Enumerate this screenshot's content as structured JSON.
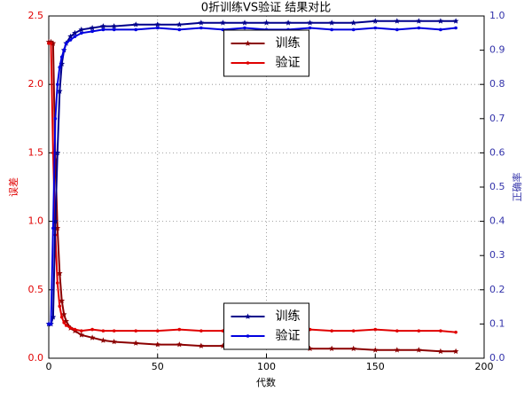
{
  "chart_data": {
    "type": "line",
    "title": "0折训练VS验证 结果对比",
    "x_label": "代数",
    "y_label": "误差",
    "y2_label": "正确率",
    "x": [
      0,
      1,
      2,
      3,
      4,
      5,
      6,
      7,
      8,
      10,
      12,
      15,
      20,
      25,
      30,
      40,
      50,
      60,
      70,
      80,
      90,
      100,
      110,
      120,
      130,
      140,
      150,
      160,
      170,
      180,
      187
    ],
    "xlim": [
      0,
      200
    ],
    "xticks": [
      0,
      50,
      100,
      150,
      200
    ],
    "ylim": [
      0,
      2.5
    ],
    "yticks": [
      {
        "value": 0,
        "label": "0.0"
      },
      {
        "value": 0.5,
        "label": "0.5"
      },
      {
        "value": 1,
        "label": "1.0"
      },
      {
        "value": 1.5,
        "label": "1.5"
      },
      {
        "value": 2,
        "label": "2.0"
      },
      {
        "value": 2.5,
        "label": "2.5"
      }
    ],
    "y2lim": [
      0,
      1
    ],
    "y2ticks": [
      {
        "value": 0,
        "label": "0.0"
      },
      0.1,
      0.2,
      0.3,
      0.4,
      0.5,
      0.6,
      0.7,
      0.8,
      0.9,
      {
        "value": 1,
        "label": "1.0"
      }
    ],
    "grid": true,
    "legend_loc": "upper center",
    "legend2_loc": "lower center",
    "series": [
      {
        "name": "训练",
        "color": "#8b0000",
        "marker": "star",
        "axis": "y",
        "values": [
          2.31,
          2.31,
          2.3,
          1.45,
          0.95,
          0.62,
          0.42,
          0.32,
          0.27,
          0.22,
          0.2,
          0.17,
          0.15,
          0.13,
          0.12,
          0.11,
          0.1,
          0.1,
          0.09,
          0.09,
          0.08,
          0.08,
          0.08,
          0.07,
          0.07,
          0.07,
          0.06,
          0.06,
          0.06,
          0.05,
          0.05
        ]
      },
      {
        "name": "验证",
        "color": "#e00000",
        "marker": "dot",
        "axis": "y",
        "values": [
          2.3,
          2.3,
          1.5,
          0.9,
          0.55,
          0.38,
          0.3,
          0.26,
          0.24,
          0.22,
          0.21,
          0.2,
          0.21,
          0.2,
          0.2,
          0.2,
          0.2,
          0.21,
          0.2,
          0.2,
          0.21,
          0.2,
          0.2,
          0.21,
          0.2,
          0.2,
          0.21,
          0.2,
          0.2,
          0.2,
          0.19
        ]
      },
      {
        "name": "训练",
        "color": "#00008b",
        "marker": "star",
        "axis": "y2",
        "values": [
          0.1,
          0.1,
          0.12,
          0.4,
          0.6,
          0.78,
          0.86,
          0.9,
          0.92,
          0.94,
          0.95,
          0.96,
          0.965,
          0.97,
          0.97,
          0.975,
          0.975,
          0.975,
          0.98,
          0.98,
          0.98,
          0.98,
          0.98,
          0.98,
          0.98,
          0.98,
          0.985,
          0.985,
          0.985,
          0.985,
          0.985
        ]
      },
      {
        "name": "验证",
        "color": "#0000e0",
        "marker": "dot",
        "axis": "y2",
        "values": [
          0.1,
          0.1,
          0.38,
          0.7,
          0.8,
          0.85,
          0.88,
          0.9,
          0.92,
          0.93,
          0.94,
          0.95,
          0.955,
          0.96,
          0.96,
          0.96,
          0.965,
          0.96,
          0.965,
          0.96,
          0.965,
          0.96,
          0.96,
          0.965,
          0.96,
          0.96,
          0.965,
          0.96,
          0.965,
          0.96,
          0.965
        ]
      }
    ]
  }
}
